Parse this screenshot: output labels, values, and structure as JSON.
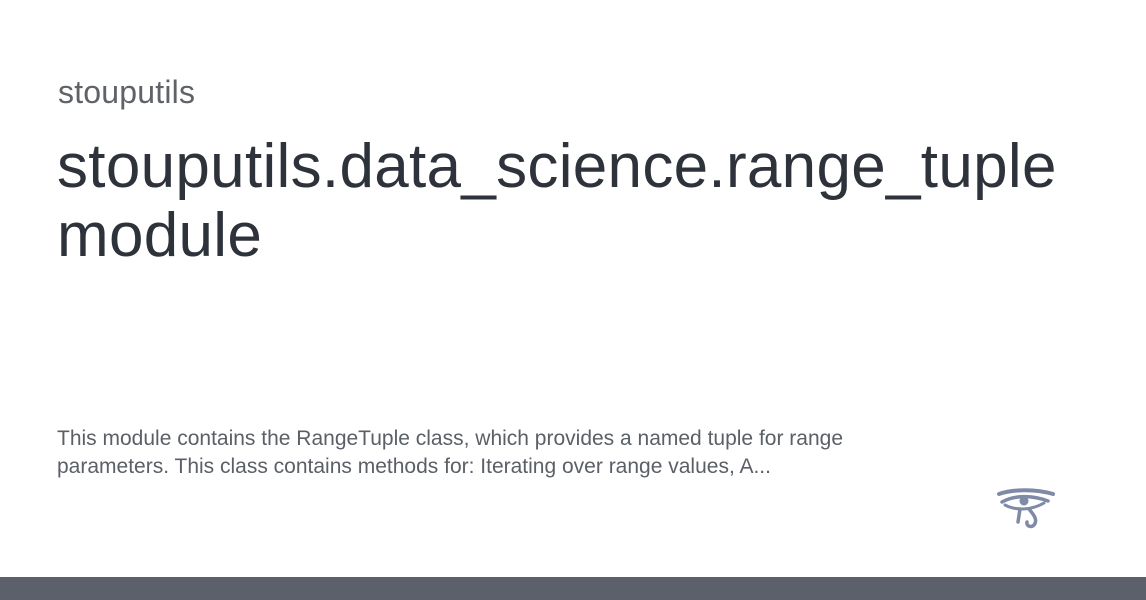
{
  "header": {
    "site_name": "stouputils"
  },
  "main": {
    "title_line1": "stouputils.data_science.range_tuple",
    "title_line2": "module",
    "description_line1": "This module contains the RangeTuple class, which provides a named tuple for range",
    "description_line2": "parameters. This class contains methods for: Iterating over range values, A..."
  },
  "logo": {
    "icon": "eye-of-horus-icon",
    "color": "#7f8aa6"
  },
  "footer": {
    "bar_color": "#5b606a"
  }
}
